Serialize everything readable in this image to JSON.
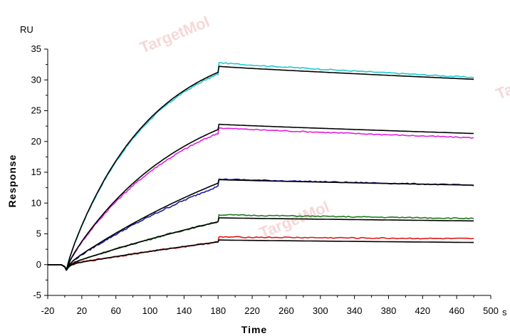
{
  "watermark": "TargetMol",
  "colors": {
    "axis": "#000000",
    "fit": "#000000",
    "cyan": "#20c8d0",
    "magenta": "#e020e0",
    "blue": "#1a1aa8",
    "green": "#207820",
    "red": "#e01818"
  },
  "chart_data": {
    "type": "line",
    "title": "",
    "xlabel": "Time",
    "ylabel": "Response",
    "x_unit": "s",
    "y_unit": "RU",
    "xlim": [
      -20,
      500
    ],
    "ylim": [
      -5,
      35
    ],
    "xticks": [
      -20,
      20,
      60,
      100,
      140,
      180,
      220,
      260,
      300,
      340,
      380,
      420,
      460,
      500
    ],
    "yticks": [
      -5,
      0,
      5,
      10,
      15,
      20,
      25,
      30,
      35
    ],
    "legend": "none",
    "grid": false,
    "association_start": 2,
    "dissociation_start": 181,
    "end_time": 480,
    "series": [
      {
        "color": "cyan",
        "baseline_dip": -0.8,
        "assoc_end": 31.0,
        "jump": 1.8,
        "plateau_end": 30.4,
        "assoc_rate": 0.0105,
        "kind": "data"
      },
      {
        "color": "magenta",
        "baseline_dip": -0.8,
        "assoc_end": 21.4,
        "jump": 0.8,
        "plateau_end": 20.6,
        "assoc_rate": 0.0075,
        "kind": "data"
      },
      {
        "color": "blue",
        "baseline_dip": -0.8,
        "assoc_end": 12.8,
        "jump": 1.1,
        "plateau_end": 12.9,
        "assoc_rate": 0.003,
        "kind": "data"
      },
      {
        "color": "green",
        "baseline_dip": -0.8,
        "assoc_end": 7.0,
        "jump": 1.1,
        "plateau_end": 7.5,
        "assoc_rate": 0.002,
        "kind": "data"
      },
      {
        "color": "red",
        "baseline_dip": -0.8,
        "assoc_end": 3.7,
        "jump": 0.8,
        "plateau_end": 4.2,
        "assoc_rate": 0.0015,
        "kind": "data"
      },
      {
        "color": "fit",
        "baseline_dip": -0.9,
        "assoc_end": 31.3,
        "jump": 0.9,
        "plateau_end": 30.1,
        "assoc_rate": 0.0105,
        "kind": "fit"
      },
      {
        "color": "fit",
        "baseline_dip": -0.9,
        "assoc_end": 22.0,
        "jump": 0.8,
        "plateau_end": 21.3,
        "assoc_rate": 0.0075,
        "kind": "fit"
      },
      {
        "color": "fit",
        "baseline_dip": -0.9,
        "assoc_end": 13.3,
        "jump": 0.5,
        "plateau_end": 12.9,
        "assoc_rate": 0.003,
        "kind": "fit"
      },
      {
        "color": "fit",
        "baseline_dip": -0.9,
        "assoc_end": 7.0,
        "jump": 0.6,
        "plateau_end": 7.1,
        "assoc_rate": 0.002,
        "kind": "fit"
      },
      {
        "color": "fit",
        "baseline_dip": -0.9,
        "assoc_end": 3.7,
        "jump": 0.3,
        "plateau_end": 3.6,
        "assoc_rate": 0.0015,
        "kind": "fit"
      }
    ]
  }
}
